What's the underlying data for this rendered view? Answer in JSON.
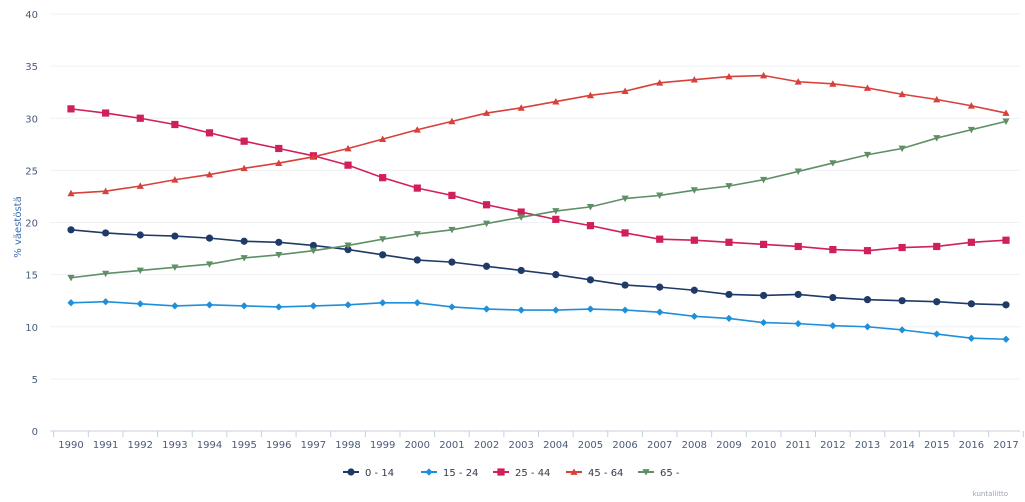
{
  "chart_data": {
    "type": "line",
    "title": "",
    "xlabel": "",
    "ylabel": "% väestöstä",
    "ylim": [
      0,
      40
    ],
    "yticks": [
      "0",
      "5",
      "10",
      "15",
      "20",
      "25",
      "30",
      "35",
      "40"
    ],
    "grid": true,
    "legend_position": "bottom",
    "categories": [
      "1990",
      "1991",
      "1992",
      "1993",
      "1994",
      "1995",
      "1996",
      "1997",
      "1998",
      "1999",
      "2000",
      "2001",
      "2002",
      "2003",
      "2004",
      "2005",
      "2006",
      "2007",
      "2008",
      "2009",
      "2010",
      "2011",
      "2012",
      "2013",
      "2014",
      "2015",
      "2016",
      "2017"
    ],
    "series": [
      {
        "name": "0 - 14",
        "color": "#1f3a68",
        "marker": "circle",
        "values": [
          19.3,
          19.0,
          18.8,
          18.7,
          18.5,
          18.2,
          18.1,
          17.8,
          17.4,
          16.9,
          16.4,
          16.2,
          15.8,
          15.4,
          15.0,
          14.5,
          14.0,
          13.8,
          13.5,
          13.1,
          13.0,
          13.1,
          12.8,
          12.6,
          12.5,
          12.4,
          12.2,
          12.1
        ]
      },
      {
        "name": "15 - 24",
        "color": "#1f8fd9",
        "marker": "diamond",
        "values": [
          12.3,
          12.4,
          12.2,
          12.0,
          12.1,
          12.0,
          11.9,
          12.0,
          12.1,
          12.3,
          12.3,
          11.9,
          11.7,
          11.6,
          11.6,
          11.7,
          11.6,
          11.4,
          11.0,
          10.8,
          10.4,
          10.3,
          10.1,
          10.0,
          9.7,
          9.3,
          8.9,
          8.8
        ]
      },
      {
        "name": "25 - 44",
        "color": "#d11f59",
        "marker": "square",
        "values": [
          30.9,
          30.5,
          30.0,
          29.4,
          28.6,
          27.8,
          27.1,
          26.4,
          25.5,
          24.3,
          23.3,
          22.6,
          21.7,
          21.0,
          20.3,
          19.7,
          19.0,
          18.4,
          18.3,
          18.1,
          17.9,
          17.7,
          17.4,
          17.3,
          17.6,
          17.7,
          18.1,
          18.3
        ]
      },
      {
        "name": "45 - 64",
        "color": "#d8403a",
        "marker": "triangle",
        "values": [
          22.8,
          23.0,
          23.5,
          24.1,
          24.6,
          25.2,
          25.7,
          26.3,
          27.1,
          28.0,
          28.9,
          29.7,
          30.5,
          31.0,
          31.6,
          32.2,
          32.6,
          33.4,
          33.7,
          34.0,
          34.1,
          33.5,
          33.3,
          32.9,
          32.3,
          31.8,
          31.2,
          30.5
        ]
      },
      {
        "name": "65 -",
        "color": "#5f8f66",
        "marker": "triangle-down",
        "values": [
          14.7,
          15.1,
          15.4,
          15.7,
          16.0,
          16.6,
          16.9,
          17.3,
          17.8,
          18.4,
          18.9,
          19.3,
          19.9,
          20.5,
          21.1,
          21.5,
          22.3,
          22.6,
          23.1,
          23.5,
          24.1,
          24.9,
          25.7,
          26.5,
          27.1,
          28.1,
          28.9,
          29.7
        ]
      }
    ],
    "credit": "kuntaliitto"
  }
}
